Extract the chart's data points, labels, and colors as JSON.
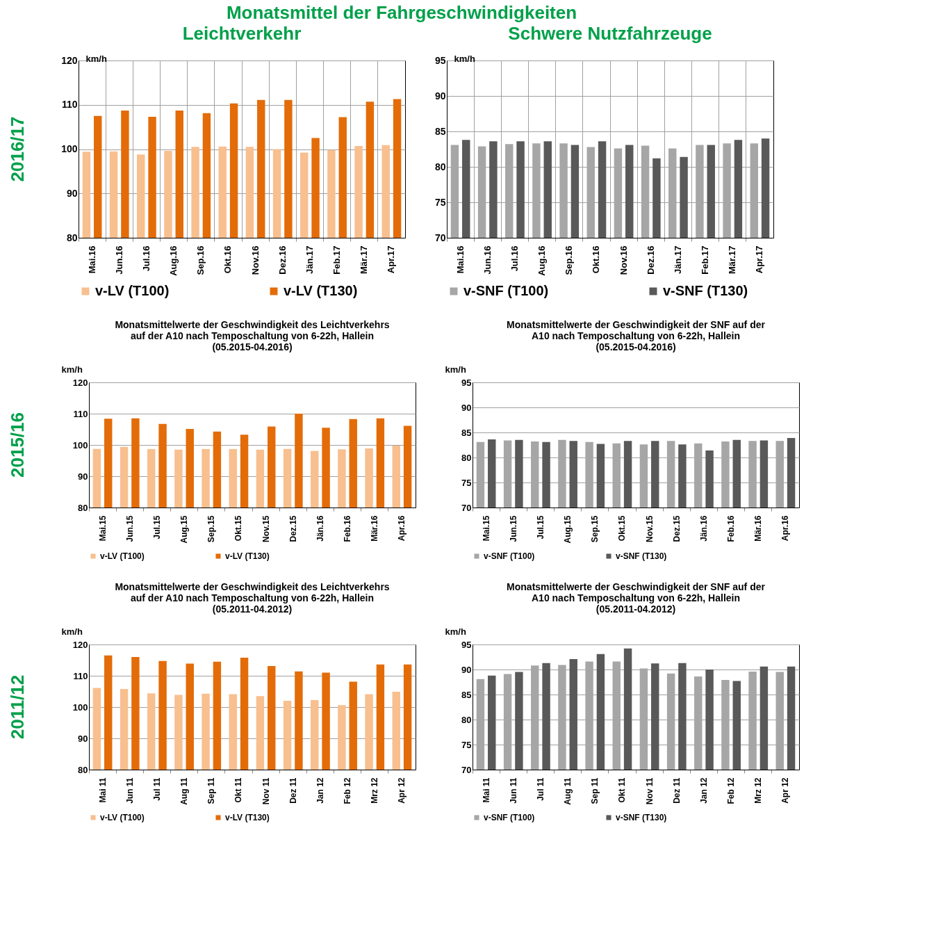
{
  "chart_data": [
    {
      "type": "bar",
      "title": "Leichtverkehr",
      "ylabel": "km/h",
      "annotations": [
        "Monatsmittel der Fahrgeschwindigkeiten",
        "2016/17"
      ],
      "categories": [
        "Mai.16",
        "Jun.16",
        "Jul.16",
        "Aug.16",
        "Sep.16",
        "Okt.16",
        "Nov.16",
        "Dez.16",
        "Jän.17",
        "Feb.17",
        "Mär.17",
        "Apr.17"
      ],
      "series": [
        {
          "name": "v-LV (T100)",
          "color": "#f8bf8f",
          "values": [
            99.4,
            99.5,
            98.8,
            99.6,
            100.5,
            100.6,
            100.5,
            100.0,
            99.2,
            99.8,
            100.7,
            100.9
          ]
        },
        {
          "name": "v-LV (T130)",
          "color": "#e36c09",
          "values": [
            107.5,
            108.7,
            107.3,
            108.7,
            108.1,
            110.3,
            111.1,
            111.1,
            102.5,
            107.2,
            110.7,
            111.3
          ]
        }
      ],
      "ylim": [
        80,
        120
      ],
      "yticks": [
        80,
        90,
        100,
        110,
        120
      ],
      "grid": true,
      "legend": "bottom"
    },
    {
      "type": "bar",
      "title": "Schwere Nutzfahrzeuge",
      "ylabel": "km/h",
      "categories": [
        "Mai.16",
        "Jun.16",
        "Jul.16",
        "Aug.16",
        "Sep.16",
        "Okt.16",
        "Nov.16",
        "Dez.16",
        "Jän.17",
        "Feb.17",
        "Mär.17",
        "Apr.17"
      ],
      "series": [
        {
          "name": "v-SNF (T100)",
          "color": "#a6a6a6",
          "values": [
            83.1,
            82.9,
            83.2,
            83.3,
            83.3,
            82.8,
            82.6,
            83.0,
            82.6,
            83.1,
            83.3,
            83.3
          ]
        },
        {
          "name": "v-SNF (T130)",
          "color": "#595959",
          "values": [
            83.8,
            83.6,
            83.6,
            83.6,
            83.1,
            83.6,
            83.1,
            81.2,
            81.4,
            83.1,
            83.8,
            84.0
          ]
        }
      ],
      "ylim": [
        70,
        95
      ],
      "yticks": [
        70,
        75,
        80,
        85,
        90,
        95
      ],
      "grid": true,
      "legend": "bottom"
    },
    {
      "type": "bar",
      "title": "Monatsmittelwerte der Geschwindigkeit des Leichtverkehrs\nauf der A10 nach Temposchaltung von 6-22h, Hallein\n(05.2015-04.2016)",
      "ylabel": "km/h",
      "annotations": [
        "2015/16"
      ],
      "categories": [
        "Mai.15",
        "Jun.15",
        "Jul.15",
        "Aug.15",
        "Sep.15",
        "Okt.15",
        "Nov.15",
        "Dez.15",
        "Jän.16",
        "Feb.16",
        "Mär.16",
        "Apr.16"
      ],
      "series": [
        {
          "name": "v-LV (T100)",
          "color": "#f8bf8f",
          "values": [
            98.7,
            99.4,
            98.7,
            98.5,
            98.7,
            98.7,
            98.5,
            98.7,
            98.1,
            98.6,
            98.9,
            99.8
          ]
        },
        {
          "name": "v-LV (T130)",
          "color": "#e36c09",
          "values": [
            108.4,
            108.5,
            106.7,
            105.1,
            104.3,
            103.3,
            105.9,
            110.0,
            105.5,
            108.3,
            108.5,
            106.1
          ]
        }
      ],
      "ylim": [
        80,
        120
      ],
      "yticks": [
        80,
        90,
        100,
        110,
        120
      ],
      "grid": "y",
      "legend": "bottom"
    },
    {
      "type": "bar",
      "title": "Monatsmittelwerte der Geschwindigkeit der SNF auf der\nA10 nach Temposchaltung von 6-22h, Hallein\n(05.2015-04.2016)",
      "ylabel": "km/h",
      "categories": [
        "Mai.15",
        "Jun.15",
        "Jul.15",
        "Aug.15",
        "Sep.15",
        "Okt.15",
        "Nov.15",
        "Dez.15",
        "Jän.16",
        "Feb.16",
        "Mär.16",
        "Apr.16"
      ],
      "series": [
        {
          "name": "v-SNF (T100)",
          "color": "#a6a6a6",
          "values": [
            83.1,
            83.4,
            83.2,
            83.5,
            83.1,
            82.8,
            82.6,
            83.3,
            82.8,
            83.2,
            83.3,
            83.3
          ]
        },
        {
          "name": "v-SNF (T130)",
          "color": "#595959",
          "values": [
            83.6,
            83.5,
            83.1,
            83.3,
            82.7,
            83.3,
            83.3,
            82.6,
            81.4,
            83.5,
            83.4,
            83.9
          ]
        }
      ],
      "ylim": [
        70,
        95
      ],
      "yticks": [
        70,
        75,
        80,
        85,
        90,
        95
      ],
      "grid": "y",
      "legend": "bottom"
    },
    {
      "type": "bar",
      "title": "Monatsmittelwerte der Geschwindigkeit des Leichtverkehrs\nauf der A10 nach Temposchaltung von 6-22h, Hallein\n(05.2011-04.2012)",
      "ylabel": "km/h",
      "annotations": [
        "2011/12"
      ],
      "categories": [
        "Mai 11",
        "Jun 11",
        "Jul 11",
        "Aug 11",
        "Sep 11",
        "Okt 11",
        "Nov 11",
        "Dez 11",
        "Jan 12",
        "Feb 12",
        "Mrz 12",
        "Apr 12"
      ],
      "series": [
        {
          "name": "v-LV (T100)",
          "color": "#f8bf8f",
          "values": [
            106.1,
            105.8,
            104.4,
            103.9,
            104.3,
            104.1,
            103.5,
            102.0,
            102.2,
            100.6,
            104.1,
            104.9
          ]
        },
        {
          "name": "v-LV (T130)",
          "color": "#e36c09",
          "values": [
            116.5,
            116.0,
            114.7,
            113.9,
            114.5,
            115.8,
            113.1,
            111.4,
            111.0,
            108.1,
            113.6,
            113.6
          ]
        }
      ],
      "ylim": [
        80,
        120
      ],
      "yticks": [
        80,
        90,
        100,
        110,
        120
      ],
      "grid": "y",
      "legend": "bottom"
    },
    {
      "type": "bar",
      "title": "Monatsmittelwerte der Geschwindigkeit der SNF auf der\nA10 nach Temposchaltung von 6-22h, Hallein\n(05.2011-04.2012)",
      "ylabel": "km/h",
      "categories": [
        "Mai 11",
        "Jun 11",
        "Jul 11",
        "Aug 11",
        "Sep 11",
        "Okt 11",
        "Nov 11",
        "Dez 11",
        "Jan 12",
        "Feb 12",
        "Mrz 12",
        "Apr 12"
      ],
      "series": [
        {
          "name": "v-SNF (T100)",
          "color": "#a6a6a6",
          "values": [
            88.1,
            89.1,
            90.8,
            90.9,
            91.6,
            91.6,
            90.2,
            89.2,
            88.6,
            87.9,
            89.6,
            89.5
          ]
        },
        {
          "name": "v-SNF (T130)",
          "color": "#595959",
          "values": [
            88.8,
            89.5,
            91.3,
            92.1,
            93.1,
            94.2,
            91.2,
            91.3,
            90.0,
            87.7,
            90.6,
            90.6
          ]
        }
      ],
      "ylim": [
        70,
        95
      ],
      "yticks": [
        70,
        75,
        80,
        85,
        90,
        95
      ],
      "grid": "y",
      "legend": "bottom"
    }
  ]
}
